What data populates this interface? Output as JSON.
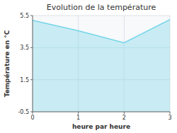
{
  "chart_data": {
    "type": "area",
    "title": "Evolution de la température",
    "xlabel": "heure par heure",
    "ylabel": "Température en °C",
    "x": [
      0,
      1,
      2,
      3
    ],
    "values": [
      5.2,
      4.55,
      3.8,
      5.25
    ],
    "xlim": [
      0,
      3
    ],
    "ylim": [
      -0.5,
      5.5
    ],
    "xticks": [
      0,
      1,
      2,
      3
    ],
    "yticks": [
      -0.5,
      1.5,
      3.5,
      5.5
    ],
    "grid": true,
    "color": "#74d4e8"
  }
}
